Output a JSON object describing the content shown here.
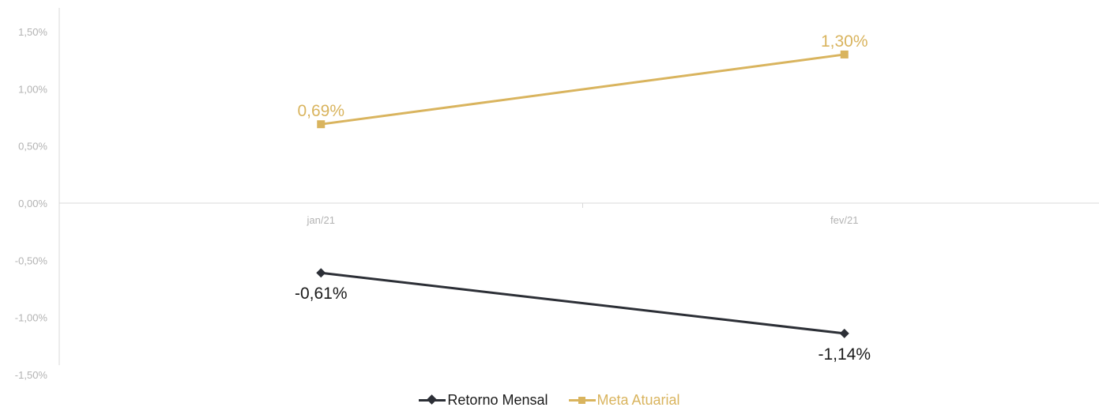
{
  "chart_data": {
    "type": "line",
    "categories": [
      "jan/21",
      "fev/21"
    ],
    "series": [
      {
        "name": "Retorno Mensal",
        "values": [
          -0.61,
          -1.14
        ],
        "labels": [
          "-0,61%",
          "-1,14%"
        ],
        "color": "#2c2f36",
        "marker": "diamond"
      },
      {
        "name": "Meta Atuarial",
        "values": [
          0.69,
          1.3
        ],
        "labels": [
          "0,69%",
          "1,30%"
        ],
        "color": "#d9b45e",
        "marker": "square"
      }
    ],
    "y_ticks": [
      {
        "value": 1.5,
        "label": "1,50%"
      },
      {
        "value": 1.0,
        "label": "1,00%"
      },
      {
        "value": 0.5,
        "label": "0,50%"
      },
      {
        "value": 0.0,
        "label": "0,00%"
      },
      {
        "value": -0.5,
        "label": "-0,50%"
      },
      {
        "value": -1.0,
        "label": "-1,00%"
      },
      {
        "value": -1.5,
        "label": "-1,50%"
      }
    ],
    "ylim": [
      -1.5,
      1.5
    ],
    "grid": false,
    "legend_position": "bottom-center",
    "axis_color": "#d9d9d9",
    "tick_label_color": "#b3b3b3"
  }
}
